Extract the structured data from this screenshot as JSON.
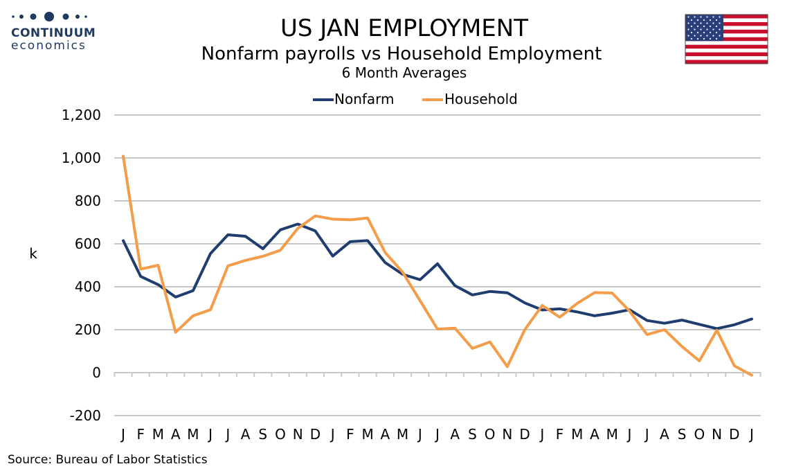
{
  "branding": {
    "logo_name": "CONTINUUM",
    "logo_sub": "economics",
    "logo_icon": "dots-icon",
    "flag_icon": "us-flag-icon",
    "colors": {
      "logo": "#1f3a5f",
      "flag_red": "#c8102e",
      "flag_blue": "#2b3f7d"
    }
  },
  "source": "Source: Bureau of Labor Statistics",
  "chart_data": {
    "type": "line",
    "title": "US JAN EMPLOYMENT",
    "subtitle": "Nonfarm payrolls vs Household Employment",
    "subsubtitle": "6 Month Averages",
    "ylabel": "k",
    "xlabel": "",
    "ylim": [
      -200,
      1200
    ],
    "yticks": [
      -200,
      0,
      200,
      400,
      600,
      800,
      1000,
      1200
    ],
    "ytick_labels": [
      "-200",
      "0",
      "200",
      "400",
      "600",
      "800",
      "1,000",
      "1,200"
    ],
    "grid": true,
    "legend_position": "top",
    "categories": [
      "J",
      "F",
      "M",
      "A",
      "M",
      "J",
      "J",
      "A",
      "S",
      "O",
      "N",
      "D",
      "J",
      "F",
      "M",
      "A",
      "M",
      "J",
      "J",
      "A",
      "S",
      "O",
      "N",
      "D",
      "J",
      "F",
      "M",
      "A",
      "M",
      "J",
      "J",
      "A",
      "S",
      "O",
      "N",
      "D",
      "J"
    ],
    "series": [
      {
        "name": "Nonfarm",
        "color": "#1f3d6e",
        "values": [
          615,
          448,
          410,
          352,
          382,
          555,
          642,
          635,
          577,
          665,
          692,
          660,
          543,
          610,
          615,
          513,
          458,
          433,
          507,
          405,
          362,
          378,
          372,
          325,
          292,
          297,
          283,
          265,
          277,
          293,
          243,
          230,
          245,
          225,
          205,
          223,
          250
        ]
      },
      {
        "name": "Household",
        "color": "#f39c4a",
        "values": [
          1008,
          482,
          500,
          188,
          265,
          293,
          497,
          523,
          542,
          570,
          672,
          730,
          715,
          712,
          720,
          560,
          468,
          335,
          203,
          207,
          113,
          143,
          28,
          200,
          313,
          258,
          323,
          373,
          371,
          287,
          177,
          200,
          122,
          55,
          197,
          32,
          -12
        ]
      }
    ]
  }
}
